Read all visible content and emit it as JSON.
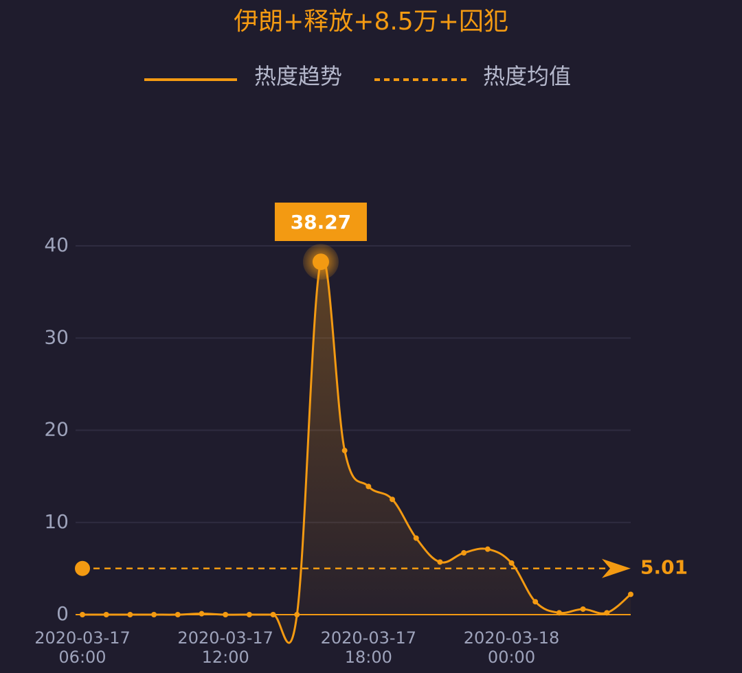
{
  "chart_data": {
    "type": "line",
    "title": "伊朗+释放+8.5万+囚犯",
    "categories": [
      "2020-03-17 06:00",
      null,
      null,
      null,
      null,
      null,
      "2020-03-17 12:00",
      null,
      null,
      null,
      null,
      null,
      "2020-03-17 18:00",
      null,
      null,
      null,
      null,
      null,
      "2020-03-18 00:00",
      null,
      null,
      null,
      null,
      null
    ],
    "series": [
      {
        "name": "热度趋势",
        "color": "#f39a12",
        "values": [
          0,
          0,
          0,
          0,
          0,
          0.1,
          0,
          0,
          0,
          0,
          38.27,
          17.8,
          13.9,
          12.5,
          8.3,
          5.7,
          6.7,
          7.1,
          5.6,
          1.4,
          0.2,
          0.6,
          0.2,
          2.2
        ]
      }
    ],
    "mean": {
      "name": "热度均值",
      "value": 5.01
    },
    "ylim": [
      0,
      40
    ],
    "yticks": [
      0,
      10,
      20,
      30,
      40
    ],
    "grid": true
  }
}
